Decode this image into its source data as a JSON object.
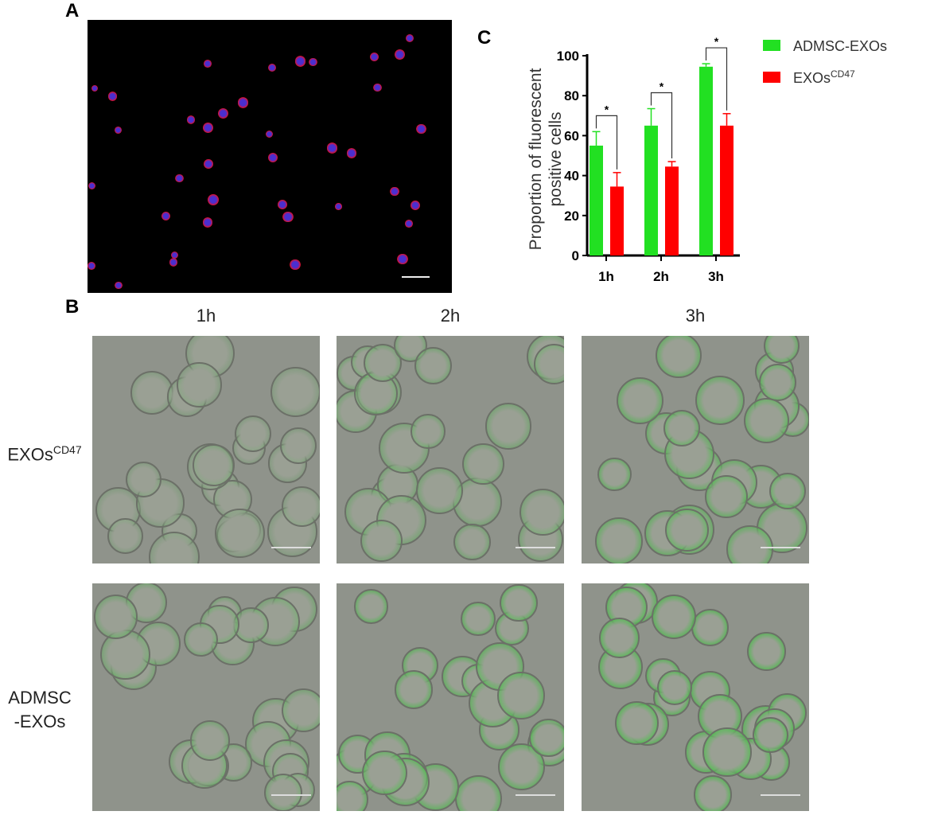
{
  "panels": {
    "a": "A",
    "b": "B",
    "c": "C"
  },
  "panel_b": {
    "columns": [
      "1h",
      "2h",
      "3h"
    ],
    "rows": [
      {
        "label": "EXOs",
        "sup": "CD47"
      },
      {
        "label_line1": "ADMSC",
        "label_line2": "-EXOs"
      }
    ]
  },
  "chart_data": {
    "type": "bar",
    "categories": [
      "1h",
      "2h",
      "3h"
    ],
    "series": [
      {
        "name": "ADMSC-EXOs",
        "color": "#22e022",
        "values": [
          55,
          65,
          94.5
        ],
        "error_upper": [
          62,
          73.5,
          96
        ]
      },
      {
        "name": "EXOs",
        "name_sup": "CD47",
        "color": "#ff0000",
        "values": [
          34.5,
          44.5,
          65
        ],
        "error_upper": [
          41.5,
          47,
          71
        ]
      }
    ],
    "ylabel_line1": "Proportion of fluorescent",
    "ylabel_line2": "positive cells",
    "ylim": [
      0,
      100
    ],
    "yticks": [
      "0",
      "20",
      "40",
      "60",
      "80",
      "100"
    ],
    "significance": [
      "*",
      "*",
      "*"
    ],
    "legend": "right",
    "grid": false
  }
}
